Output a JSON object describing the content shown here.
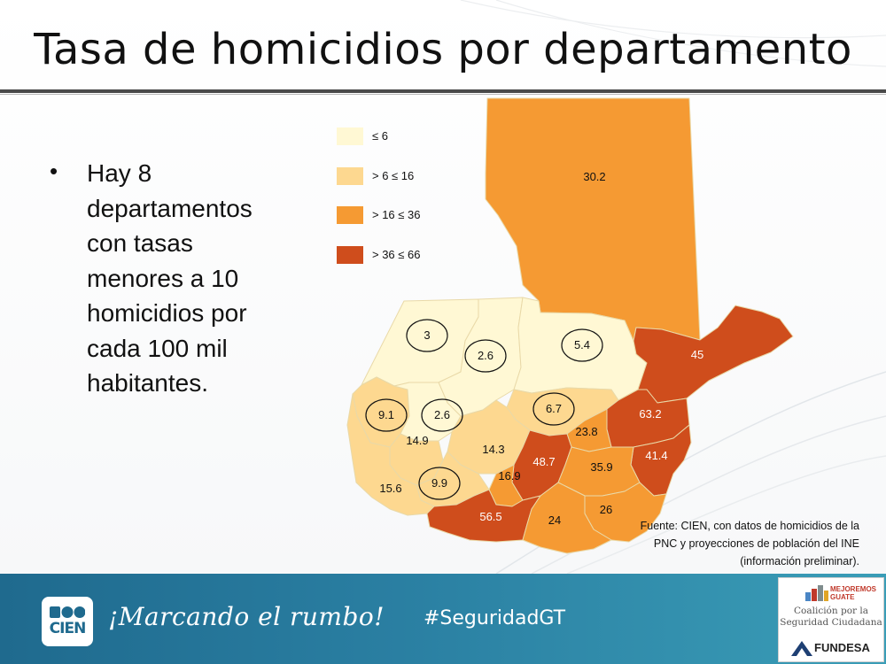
{
  "title": "Tasa de homicidios por departamento",
  "bullet": "Hay 8 departamentos con tasas menores a 10 homicidios por cada 100 mil habitantes.",
  "legend": [
    {
      "label": "≤ 6",
      "color": "#fff8d4"
    },
    {
      "label": "> 6 ≤ 16",
      "color": "#fdd890"
    },
    {
      "label": "> 16  ≤ 36",
      "color": "#f59a33"
    },
    {
      "label": "> 36  ≤ 66",
      "color": "#cf4d1c"
    }
  ],
  "departments": [
    {
      "value": "30.2",
      "class": 2,
      "circled": false
    },
    {
      "value": "3",
      "class": 0,
      "circled": true
    },
    {
      "value": "2.6",
      "class": 0,
      "circled": true
    },
    {
      "value": "5.4",
      "class": 0,
      "circled": true
    },
    {
      "value": "45",
      "class": 3,
      "circled": false
    },
    {
      "value": "9.1",
      "class": 1,
      "circled": true
    },
    {
      "value": "2.6",
      "class": 0,
      "circled": true
    },
    {
      "value": "6.7",
      "class": 1,
      "circled": true
    },
    {
      "value": "63.2",
      "class": 3,
      "circled": false
    },
    {
      "value": "14.9",
      "class": 1,
      "circled": false
    },
    {
      "value": "23.8",
      "class": 2,
      "circled": false
    },
    {
      "value": "14.3",
      "class": 1,
      "circled": false
    },
    {
      "value": "48.7",
      "class": 3,
      "circled": false
    },
    {
      "value": "41.4",
      "class": 3,
      "circled": false
    },
    {
      "value": "35.9",
      "class": 2,
      "circled": false
    },
    {
      "value": "16.9",
      "class": 2,
      "circled": false
    },
    {
      "value": "9.9",
      "class": 1,
      "circled": true
    },
    {
      "value": "15.6",
      "class": 1,
      "circled": false
    },
    {
      "value": "26",
      "class": 2,
      "circled": false
    },
    {
      "value": "56.5",
      "class": 3,
      "circled": false
    },
    {
      "value": "24",
      "class": 2,
      "circled": false
    }
  ],
  "source": "Fuente: CIEN, con datos de homicidios de la PNC y proyecciones de población del INE (información preliminar).",
  "footer": {
    "cien_logo_text": "CIEN",
    "slogan": "¡Marcando el rumbo!",
    "hashtag": "#SeguridadGT",
    "mejoremos": "MEJOREMOS GUATE",
    "coalition": "Coalición por la Seguridad Ciudadana",
    "fundesa": "FUNDESA"
  }
}
